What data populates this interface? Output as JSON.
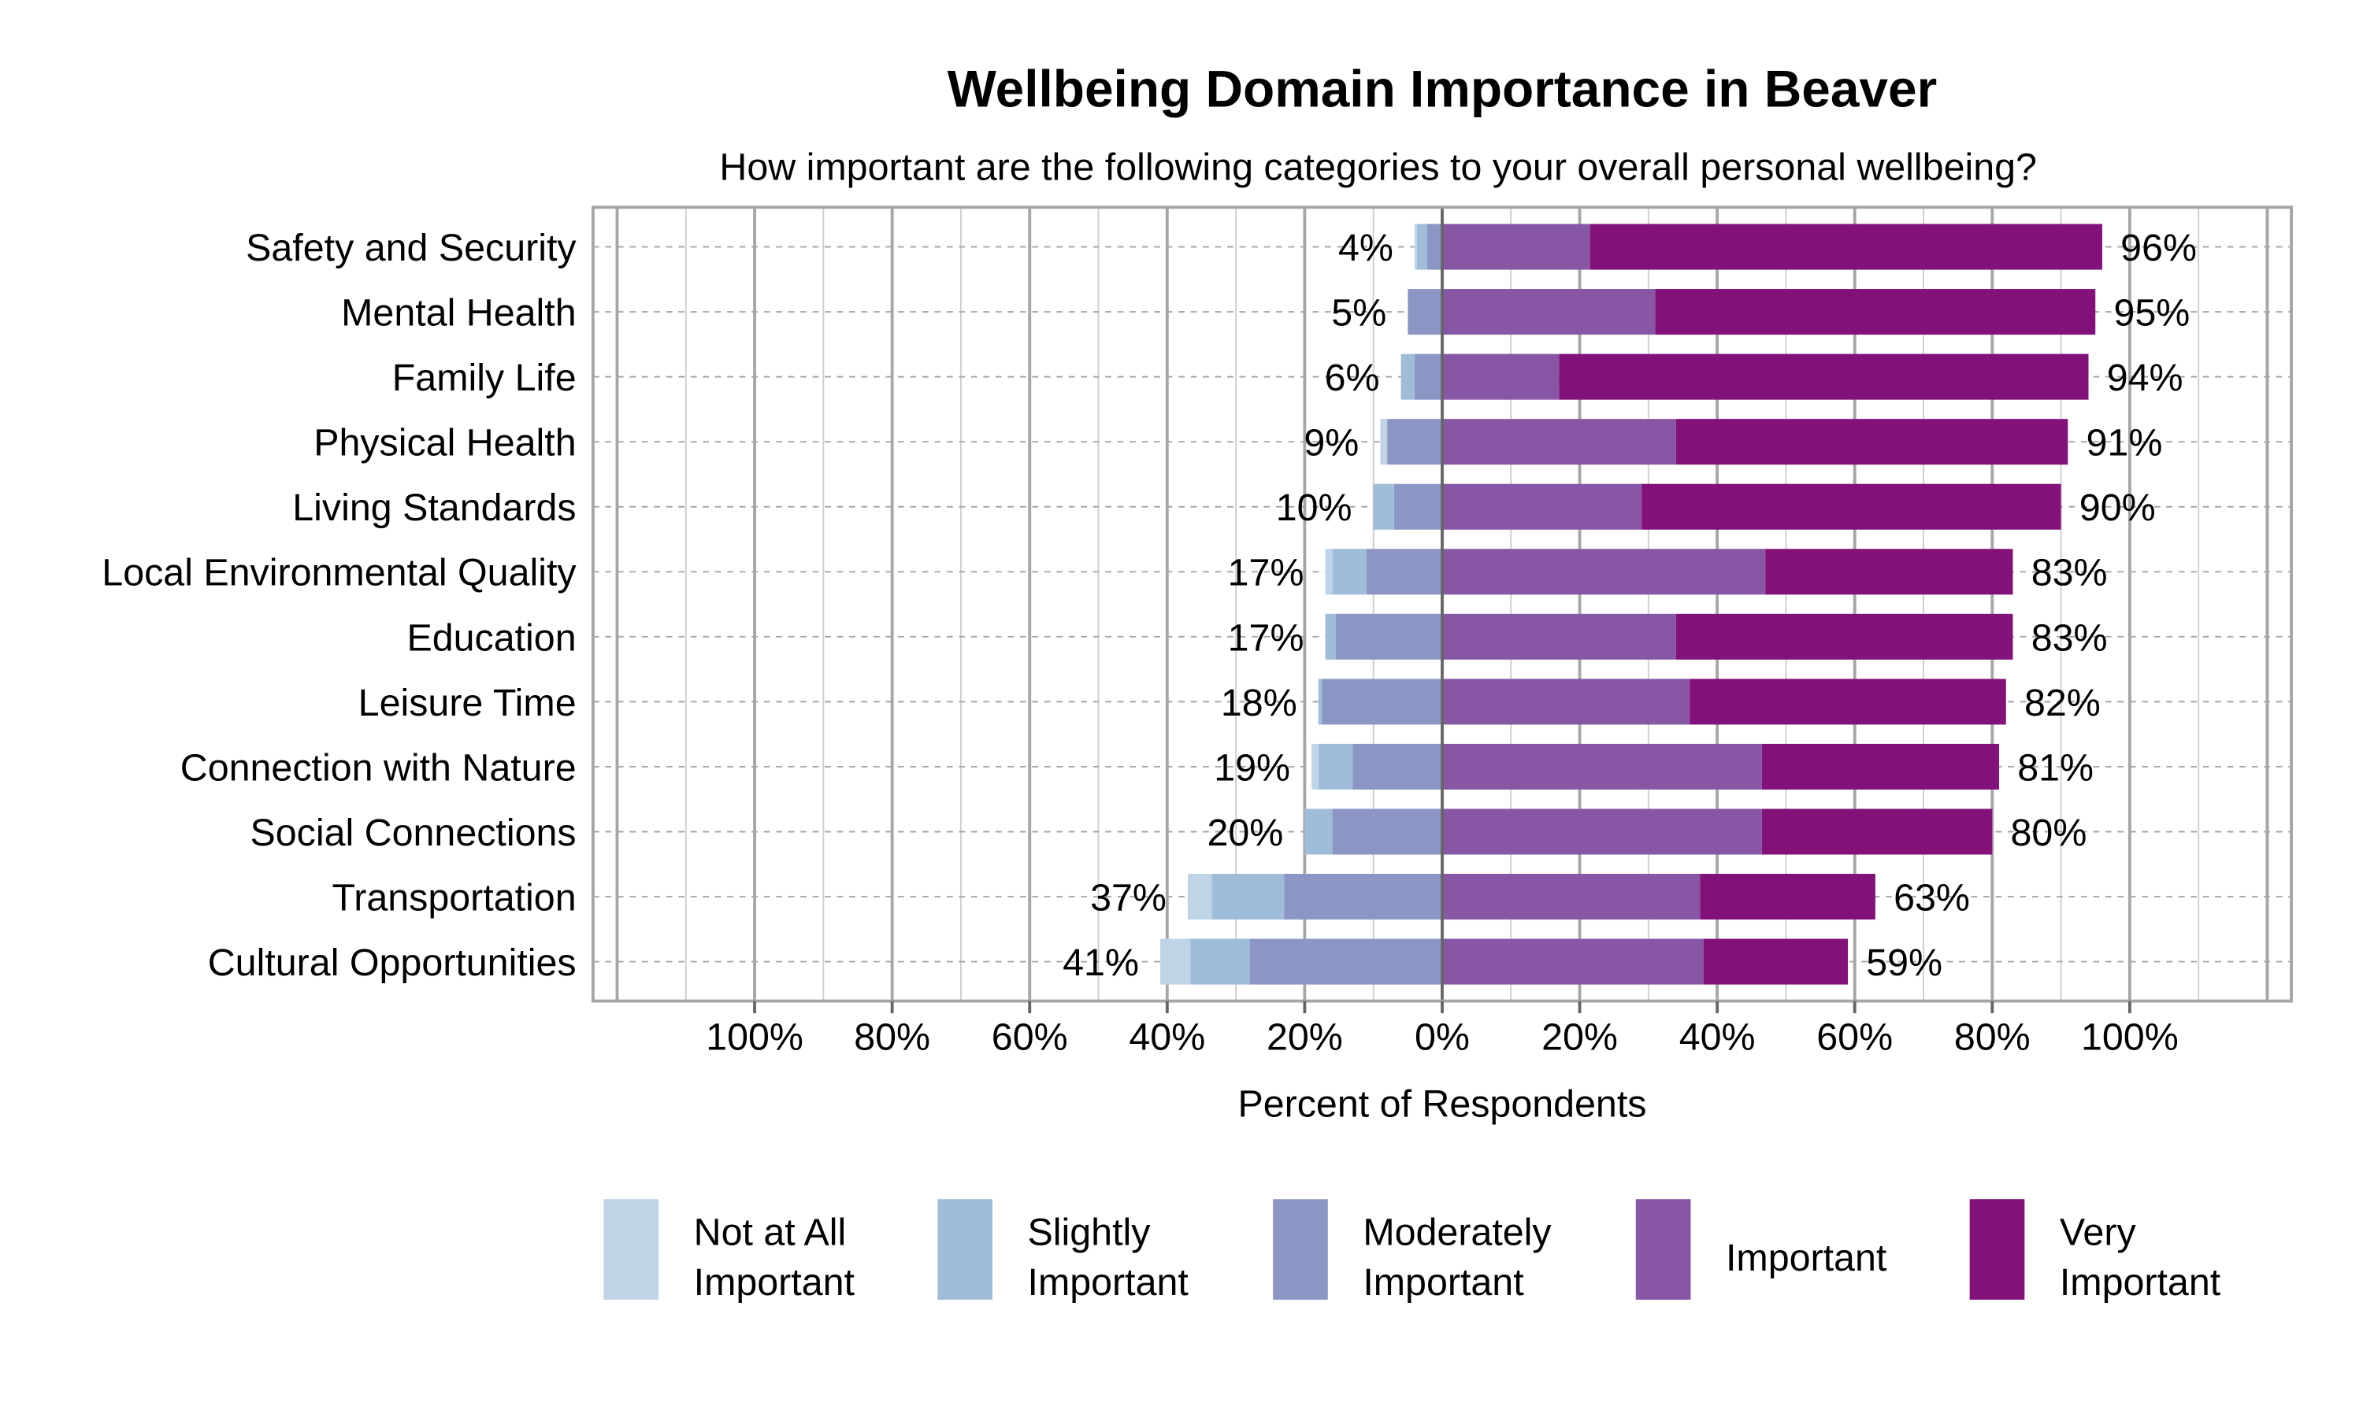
{
  "chart_data": {
    "type": "bar",
    "orientation": "horizontal",
    "stacked": "diverging",
    "title": "Wellbeing Domain Importance in Beaver",
    "subtitle": "How important are the following categories to your overall personal wellbeing?",
    "xlabel": "Percent of Respondents",
    "ylabel": "",
    "xlim": [
      -100,
      100
    ],
    "x_ticks": [
      "100%",
      "80%",
      "60%",
      "40%",
      "20%",
      "0%",
      "20%",
      "40%",
      "60%",
      "80%",
      "100%"
    ],
    "grid": true,
    "legend_position": "bottom",
    "categories": [
      "Safety and Security",
      "Mental Health",
      "Family Life",
      "Physical Health",
      "Living Standards",
      "Local Environmental Quality",
      "Education",
      "Leisure Time",
      "Connection with Nature",
      "Social Connections",
      "Transportation",
      "Cultural Opportunities"
    ],
    "series": [
      {
        "name": "Not at All Important",
        "side": "left",
        "color": "#c0d4e8",
        "values": [
          0.3,
          0,
          0,
          1,
          0,
          1,
          0,
          0,
          1,
          0,
          3.5,
          4.4
        ]
      },
      {
        "name": "Slightly Important",
        "side": "left",
        "color": "#9fbcd9",
        "values": [
          1.5,
          0,
          2,
          0,
          3,
          5,
          1.5,
          0.5,
          5,
          4,
          10.5,
          8.6
        ]
      },
      {
        "name": "Moderately Important",
        "side": "left",
        "color": "#8b96c5",
        "values": [
          2.2,
          5,
          4,
          8,
          7,
          11,
          15.5,
          17.5,
          13,
          16,
          23,
          28
        ]
      },
      {
        "name": "Important",
        "side": "right",
        "color": "#8757a6",
        "values": [
          21.5,
          31,
          17,
          34,
          29,
          47,
          34,
          36,
          46.5,
          46.5,
          37.5,
          38
        ]
      },
      {
        "name": "Very Important",
        "side": "right",
        "color": "#83117a",
        "values": [
          74.5,
          64,
          77,
          57,
          61,
          36,
          49,
          46,
          34.5,
          33.5,
          25.5,
          21
        ]
      }
    ],
    "left_totals": [
      "4%",
      "5%",
      "6%",
      "9%",
      "10%",
      "17%",
      "17%",
      "18%",
      "19%",
      "20%",
      "37%",
      "41%"
    ],
    "right_totals": [
      "96%",
      "95%",
      "94%",
      "91%",
      "90%",
      "83%",
      "83%",
      "82%",
      "81%",
      "80%",
      "63%",
      "59%"
    ],
    "legend": [
      {
        "line1": "Not at All",
        "line2": "Important"
      },
      {
        "line1": "Slightly",
        "line2": "Important"
      },
      {
        "line1": "Moderately",
        "line2": "Important"
      },
      {
        "line1": "Important",
        "line2": ""
      },
      {
        "line1": "Very",
        "line2": "Important"
      }
    ]
  }
}
